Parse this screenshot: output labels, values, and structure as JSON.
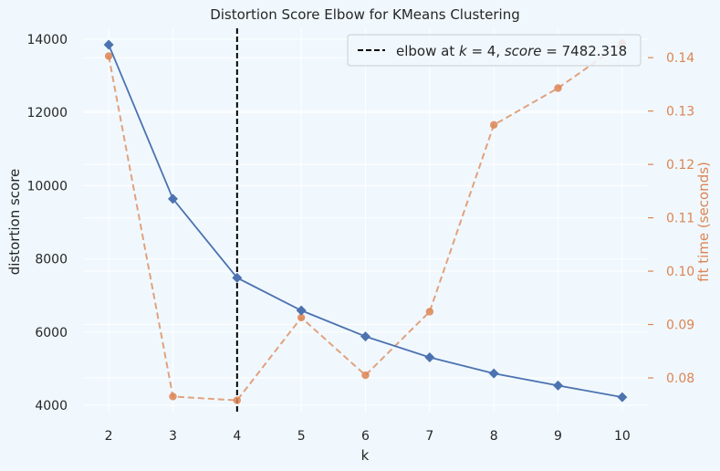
{
  "chart_data": {
    "type": "line",
    "title": "Distortion Score Elbow for KMeans Clustering",
    "xlabel": "k",
    "ylabel": "distortion score",
    "y2label": "fit time (seconds)",
    "x": [
      2,
      3,
      4,
      5,
      6,
      7,
      8,
      9,
      10
    ],
    "xlim": [
      1.6,
      10.4
    ],
    "ylim": [
      3800,
      14300
    ],
    "y2lim": [
      0.0735,
      0.1455
    ],
    "yticks": [
      4000,
      6000,
      8000,
      10000,
      12000,
      14000
    ],
    "y2ticks": [
      "0.08",
      "0.09",
      "0.10",
      "0.11",
      "0.12",
      "0.13",
      "0.14"
    ],
    "series": [
      {
        "axis": "left",
        "color": "#4c72b0",
        "marker": "diamond",
        "style": "solid",
        "values": [
          13850,
          9640,
          7482.318,
          6590,
          5880,
          5310,
          4870,
          4540,
          4220
        ]
      },
      {
        "axis": "right",
        "color": "#dd8452",
        "marker": "circle",
        "style": "dashed",
        "values": [
          0.1403,
          0.0765,
          0.0758,
          0.0913,
          0.0805,
          0.0924,
          0.1274,
          0.1343,
          0.1427
        ]
      }
    ],
    "elbow": {
      "k": 4,
      "score": "7482.318",
      "legend_text": "elbow at k = 4, score = 7482.318",
      "legend_prefix": "elbow at ",
      "legend_k_var": "k",
      "legend_eq1": " = 4, ",
      "legend_score_var": "score",
      "legend_eq2": " = 7482.318",
      "color": "#000000"
    },
    "grid": true,
    "legend_position": "top-right",
    "colors": {
      "background": "#f0f8fe",
      "grid": "#ffffff",
      "text": "#262626",
      "right_axis": "#dd8452"
    }
  }
}
